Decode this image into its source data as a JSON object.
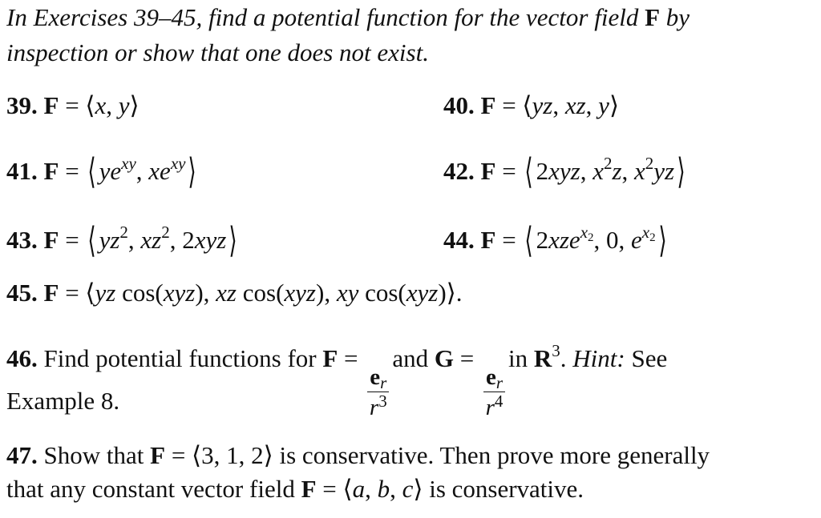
{
  "intro": [
    [
      [
        "i",
        "In Exercises 39–45, find a potential function for the vector field "
      ],
      [
        "b",
        "F"
      ],
      [
        "i",
        " by"
      ]
    ],
    [
      [
        "i",
        "inspection or show that one does not exist."
      ]
    ]
  ],
  "exercises": [
    {
      "number": "39.",
      "body": [
        [
          "b",
          "F"
        ],
        [
          "r",
          " = ⟨"
        ],
        [
          "i",
          "x"
        ],
        [
          "r",
          ", "
        ],
        [
          "i",
          "y"
        ],
        [
          "r",
          "⟩"
        ]
      ]
    },
    {
      "number": "40.",
      "body": [
        [
          "b",
          "F"
        ],
        [
          "r",
          " = ⟨"
        ],
        [
          "i",
          "yz"
        ],
        [
          "r",
          ", "
        ],
        [
          "i",
          "xz"
        ],
        [
          "r",
          ", "
        ],
        [
          "i",
          "y"
        ],
        [
          "r",
          "⟩"
        ]
      ]
    },
    {
      "number": "41.",
      "body": [
        [
          "b",
          "F"
        ],
        [
          "r",
          " = "
        ],
        [
          "big",
          "⟨"
        ],
        [
          "i",
          "ye"
        ],
        [
          "sup",
          "xy"
        ],
        [
          "r",
          ", "
        ],
        [
          "i",
          "xe"
        ],
        [
          "sup",
          "xy"
        ],
        [
          "big",
          "⟩"
        ]
      ]
    },
    {
      "number": "42.",
      "body": [
        [
          "b",
          "F"
        ],
        [
          "r",
          " = "
        ],
        [
          "big",
          "⟨"
        ],
        [
          "r",
          "2"
        ],
        [
          "i",
          "xyz"
        ],
        [
          "r",
          ", "
        ],
        [
          "i",
          "x"
        ],
        [
          "supr",
          "2"
        ],
        [
          "i",
          "z"
        ],
        [
          "r",
          ", "
        ],
        [
          "i",
          "x"
        ],
        [
          "supr",
          "2"
        ],
        [
          "i",
          "yz"
        ],
        [
          "big",
          "⟩"
        ]
      ]
    },
    {
      "number": "43.",
      "body": [
        [
          "b",
          "F"
        ],
        [
          "r",
          " = "
        ],
        [
          "big",
          "⟨"
        ],
        [
          "i",
          "yz"
        ],
        [
          "supr",
          "2"
        ],
        [
          "r",
          ", "
        ],
        [
          "i",
          "xz"
        ],
        [
          "supr",
          "2"
        ],
        [
          "r",
          ", 2"
        ],
        [
          "i",
          "xyz"
        ],
        [
          "big",
          "⟩"
        ]
      ]
    },
    {
      "number": "44.",
      "body": [
        [
          "b",
          "F"
        ],
        [
          "r",
          " = "
        ],
        [
          "big",
          "⟨"
        ],
        [
          "r",
          "2"
        ],
        [
          "i",
          "xze"
        ],
        [
          "sup",
          "x"
        ],
        [
          "ss",
          "2"
        ],
        [
          "r",
          ", 0, "
        ],
        [
          "i",
          "e"
        ],
        [
          "sup",
          "x"
        ],
        [
          "ss",
          "2"
        ],
        [
          "big",
          "⟩"
        ]
      ]
    },
    {
      "number": "45.",
      "body": [
        [
          "b",
          "F"
        ],
        [
          "r",
          " = ⟨"
        ],
        [
          "i",
          "yz"
        ],
        [
          "r",
          " cos("
        ],
        [
          "i",
          "xyz"
        ],
        [
          "r",
          "), "
        ],
        [
          "i",
          "xz"
        ],
        [
          "r",
          " cos("
        ],
        [
          "i",
          "xyz"
        ],
        [
          "r",
          "), "
        ],
        [
          "i",
          "xy"
        ],
        [
          "r",
          " cos("
        ],
        [
          "i",
          "xyz"
        ],
        [
          "r",
          ")⟩."
        ]
      ]
    },
    {
      "number": "46.",
      "body": [
        [
          "r",
          "Find potential functions for "
        ],
        [
          "b",
          "F"
        ],
        [
          "r",
          " = "
        ],
        [
          "frac",
          "e",
          "r",
          "r",
          "3"
        ],
        [
          "r",
          "and "
        ],
        [
          "b",
          "G"
        ],
        [
          "r",
          " = "
        ],
        [
          "frac",
          "e",
          "r",
          "r",
          "4"
        ],
        [
          "r",
          "in "
        ],
        [
          "b",
          "R"
        ],
        [
          "supr",
          "3"
        ],
        [
          "r",
          ". "
        ],
        [
          "i",
          "Hint:"
        ],
        [
          "r",
          " See"
        ]
      ]
    },
    {
      "number": "47.",
      "body": [
        [
          "r",
          "Show that "
        ],
        [
          "b",
          "F"
        ],
        [
          "r",
          " = ⟨3, 1, 2⟩ is conservative. Then prove more generally"
        ]
      ]
    }
  ],
  "continuations": {
    "ex46": [
      [
        "r",
        "Example 8."
      ]
    ],
    "ex47": [
      [
        "r",
        "that any constant vector field "
      ],
      [
        "b",
        "F"
      ],
      [
        "r",
        " = ⟨"
      ],
      [
        "i",
        "a"
      ],
      [
        "r",
        ", "
      ],
      [
        "i",
        "b"
      ],
      [
        "r",
        ", "
      ],
      [
        "i",
        "c"
      ],
      [
        "r",
        "⟩ is conservative."
      ]
    ]
  }
}
